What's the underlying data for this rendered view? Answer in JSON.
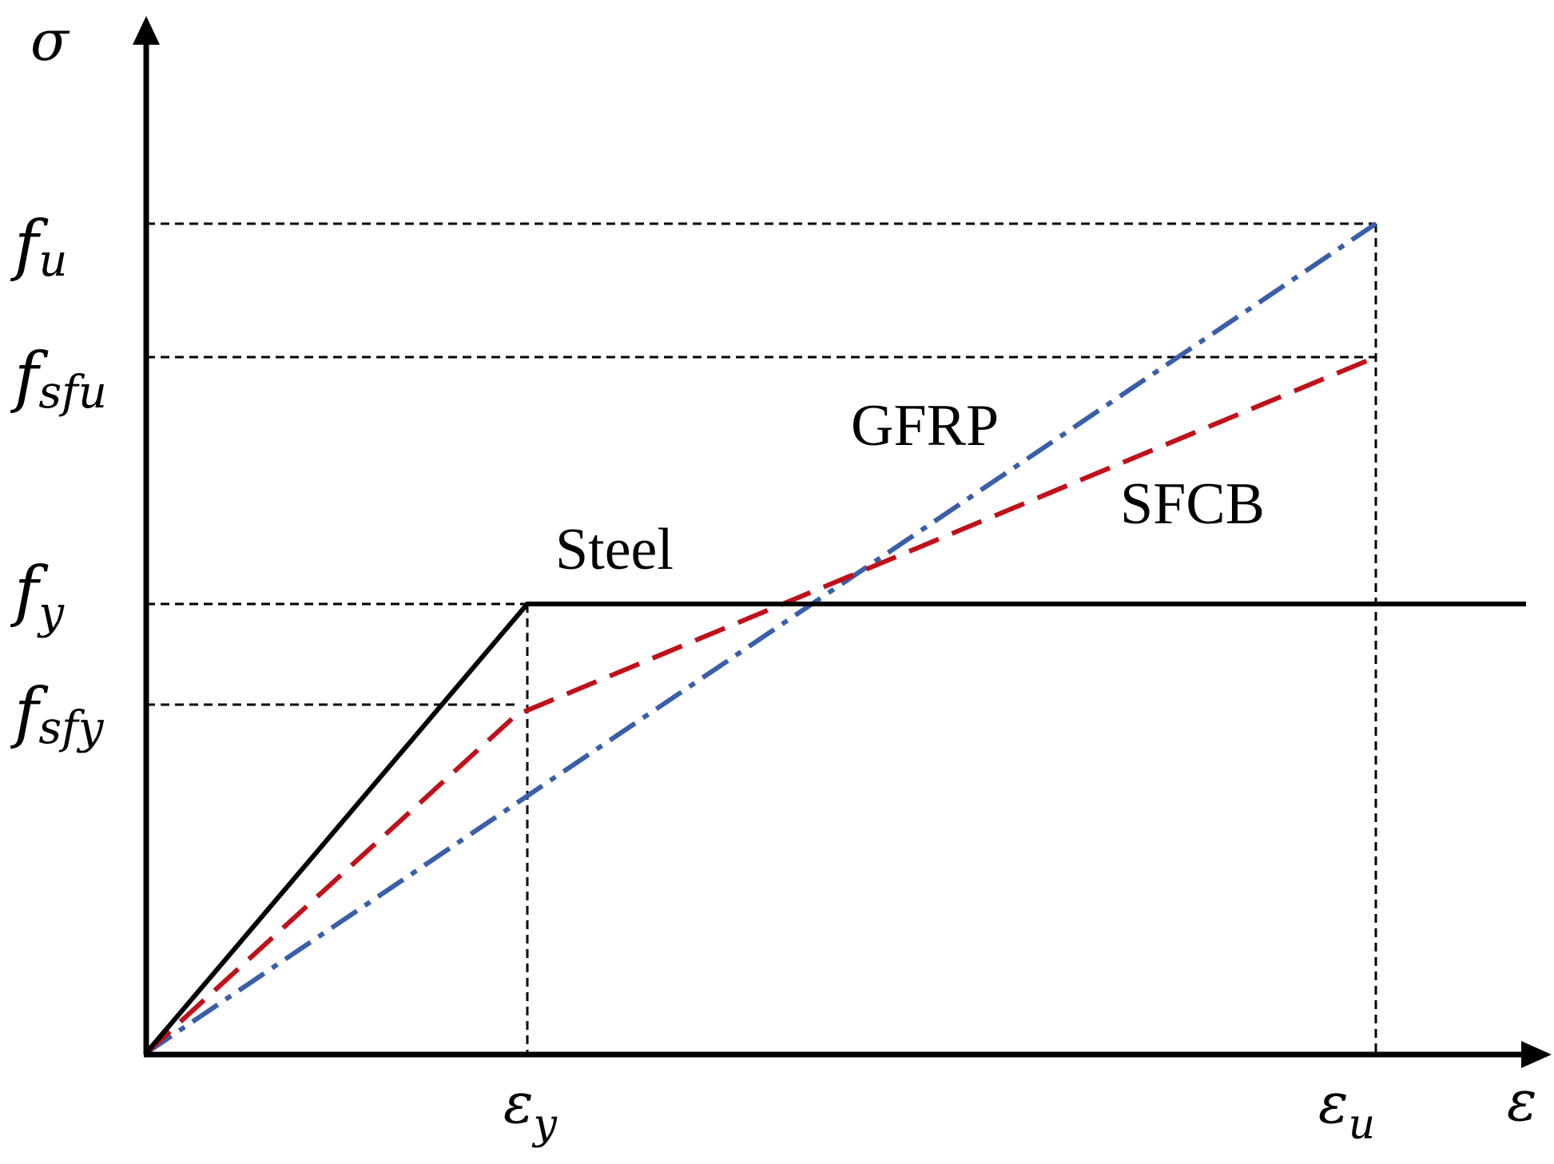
{
  "axes": {
    "y_symbol": "σ",
    "x_symbol": "ε"
  },
  "y_ticks": [
    {
      "base": "f",
      "sub": "u"
    },
    {
      "base": "f",
      "sub": "sfu"
    },
    {
      "base": "f",
      "sub": "y"
    },
    {
      "base": "f",
      "sub": "sfy"
    }
  ],
  "x_ticks": [
    {
      "base": "ε",
      "sub": "y"
    },
    {
      "base": "ε",
      "sub": "u"
    }
  ],
  "curves": [
    {
      "name": "Steel",
      "color": "#000000",
      "style": "solid"
    },
    {
      "name": "GFRP",
      "color": "#3a5ea8",
      "style": "dash-dot"
    },
    {
      "name": "SFCB",
      "color": "#c0111a",
      "style": "dashed"
    }
  ]
}
